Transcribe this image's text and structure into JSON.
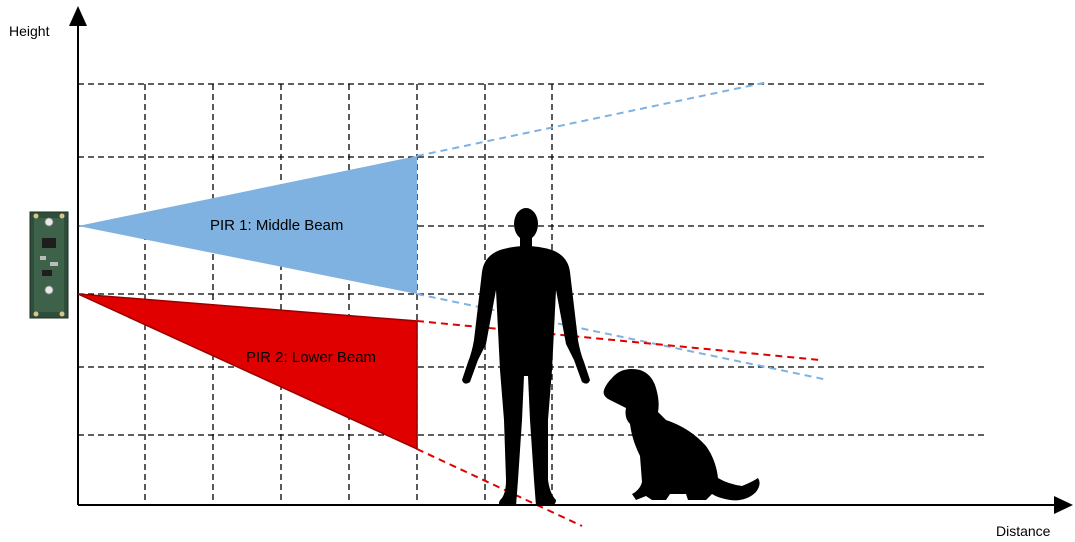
{
  "axes": {
    "y_label": "Height",
    "x_label": "Distance"
  },
  "beams": [
    {
      "name": "PIR 1: Middle Beam",
      "color": "#7fb2e0"
    },
    {
      "name": "PIR 2: Lower Beam",
      "color": "#e00000"
    }
  ],
  "figures": [
    {
      "name": "human-silhouette",
      "color": "#000000"
    },
    {
      "name": "dog-silhouette",
      "color": "#000000"
    }
  ],
  "sensor": {
    "name": "pir-sensor-board",
    "color": "#2e4d3a"
  },
  "grid": {
    "style": "dashed"
  }
}
